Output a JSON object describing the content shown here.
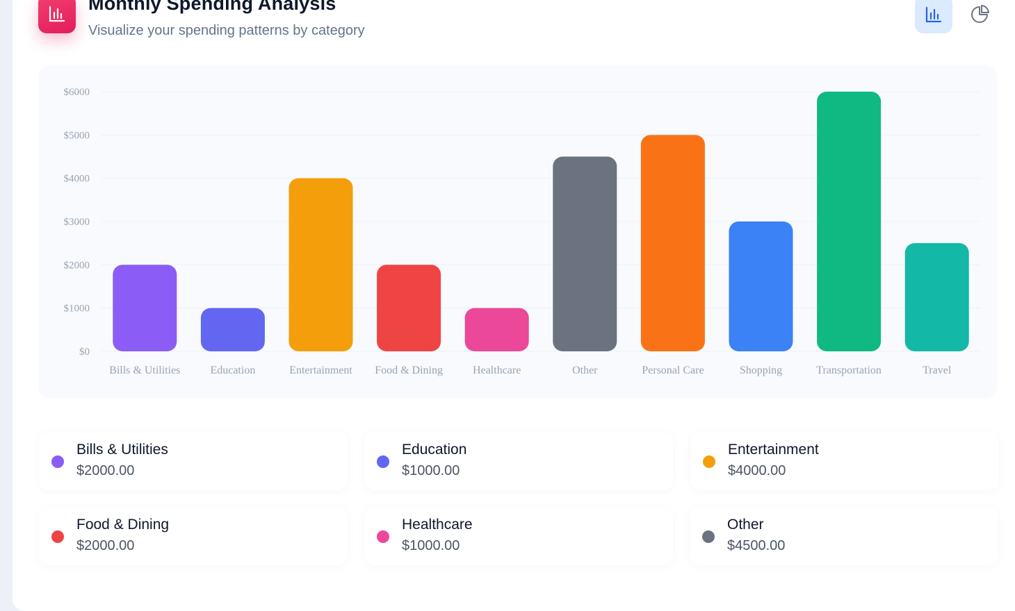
{
  "header": {
    "title": "Monthly Spending Analysis",
    "subtitle": "Visualize your spending patterns by category",
    "logo_icon": "bar-chart-icon",
    "view_buttons": [
      {
        "name": "bar-view",
        "icon": "bar-chart-icon",
        "active": true
      },
      {
        "name": "pie-view",
        "icon": "pie-chart-icon",
        "active": false
      }
    ]
  },
  "chart_data": {
    "type": "bar",
    "categories": [
      "Bills & Utilities",
      "Education",
      "Entertainment",
      "Food & Dining",
      "Healthcare",
      "Other",
      "Personal Care",
      "Shopping",
      "Transportation",
      "Travel"
    ],
    "values": [
      2000,
      1000,
      4000,
      2000,
      1000,
      4500,
      5000,
      3000,
      6000,
      2500
    ],
    "colors": [
      "#8b5cf6",
      "#6366f1",
      "#f59e0b",
      "#ef4444",
      "#ec4899",
      "#6b7280",
      "#f97316",
      "#3b82f6",
      "#10b981",
      "#14b8a6"
    ],
    "y_ticks": [
      "$0",
      "$1000",
      "$2000",
      "$3000",
      "$4000",
      "$5000",
      "$6000"
    ],
    "ylim": [
      0,
      6000
    ],
    "grid": true,
    "title": "",
    "xlabel": "",
    "ylabel": ""
  },
  "legend": [
    {
      "name": "Bills & Utilities",
      "amount": "$2000.00",
      "color": "#8b5cf6"
    },
    {
      "name": "Education",
      "amount": "$1000.00",
      "color": "#6366f1"
    },
    {
      "name": "Entertainment",
      "amount": "$4000.00",
      "color": "#f59e0b"
    },
    {
      "name": "Food & Dining",
      "amount": "$2000.00",
      "color": "#ef4444"
    },
    {
      "name": "Healthcare",
      "amount": "$1000.00",
      "color": "#ec4899"
    },
    {
      "name": "Other",
      "amount": "$4500.00",
      "color": "#6b7280"
    }
  ]
}
